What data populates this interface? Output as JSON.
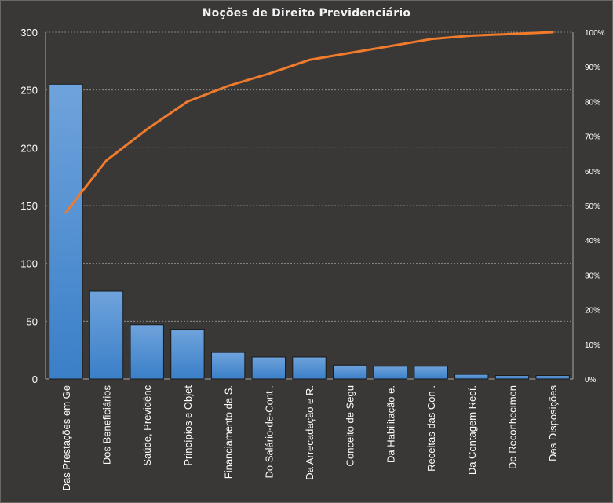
{
  "title": "Noções de Direito  Previdenciário",
  "chart_data": {
    "type": "bar",
    "title": "Noções de Direito  Previdenciário",
    "xlabel": "",
    "ylabel": "",
    "categories": [
      "Das Prestações em Ge",
      "Dos Beneficiários",
      "Saúde, Previdênc",
      "Princípios e Objet",
      "Financiamento  da S.",
      "Do Salário-de-Cont .",
      "Da Arrecadação e R.",
      "Conceito de Segu",
      "Da Habilitação e.",
      "Receitas das Con .",
      "Da Contagem Recí.",
      "Do Reconhecimen",
      "Das Disposições"
    ],
    "series": [
      {
        "values": [
          255,
          76,
          47,
          43,
          23,
          19,
          19,
          12,
          11,
          11,
          4,
          3,
          3
        ]
      },
      {
        "values": [
          48,
          63,
          72,
          80,
          84.5,
          88,
          92,
          94,
          96,
          98,
          99,
          99.5,
          100
        ]
      }
    ],
    "ylim": [
      0,
      300
    ],
    "yticks": [
      "0",
      "50",
      "100",
      "150",
      "200",
      "250",
      "300"
    ],
    "y2lim": [
      0,
      100
    ],
    "y2ticks": [
      "0%",
      "10%",
      "20%",
      "30%",
      "40%",
      "50%",
      "60%",
      "70%",
      "80%",
      "90%",
      "100%"
    ],
    "grid": true,
    "colors": {
      "bar_top": "#6fa3dc",
      "bar_bottom": "#3a7fc8",
      "line": "#f07b2c",
      "grid": "#9a9a9a",
      "background": "#3a3836"
    }
  }
}
